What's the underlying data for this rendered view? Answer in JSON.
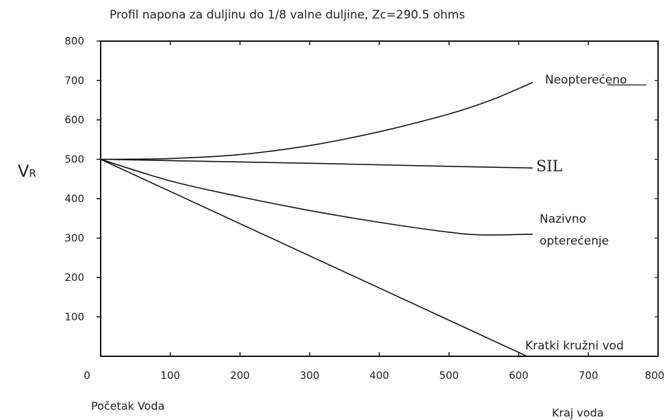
{
  "chart_data": {
    "type": "line",
    "title": "Profil napona za duljinu do 1/8 valne duljine, Zc=290.5 ohms",
    "ylabel_main": "V",
    "ylabel_sub": "R",
    "xlim": [
      0,
      800
    ],
    "ylim": [
      0,
      800
    ],
    "x_ticks": [
      "0",
      "100",
      "200",
      "300",
      "400",
      "500",
      "600",
      "700",
      "800"
    ],
    "y_ticks": [
      "100",
      "200",
      "300",
      "400",
      "500",
      "600",
      "700",
      "800"
    ],
    "grid": false,
    "series": [
      {
        "name": "Neopterećeno",
        "points": [
          [
            0,
            500
          ],
          [
            100,
            502
          ],
          [
            200,
            512
          ],
          [
            300,
            535
          ],
          [
            400,
            570
          ],
          [
            500,
            615
          ],
          [
            560,
            650
          ],
          [
            620,
            695
          ]
        ]
      },
      {
        "name": "SIL",
        "points": [
          [
            0,
            500
          ],
          [
            150,
            495
          ],
          [
            300,
            490
          ],
          [
            450,
            484
          ],
          [
            620,
            478
          ]
        ]
      },
      {
        "name_lines": [
          "Nazivno",
          "opterećenje"
        ],
        "points": [
          [
            0,
            500
          ],
          [
            100,
            445
          ],
          [
            200,
            405
          ],
          [
            300,
            370
          ],
          [
            400,
            340
          ],
          [
            500,
            315
          ],
          [
            550,
            308
          ],
          [
            620,
            310
          ]
        ]
      },
      {
        "name": "Kratki kružni vod",
        "points": [
          [
            0,
            500
          ],
          [
            612,
            0
          ]
        ]
      }
    ],
    "annotations": {
      "start": "Početak Voda",
      "end": "Kraj voda"
    }
  }
}
